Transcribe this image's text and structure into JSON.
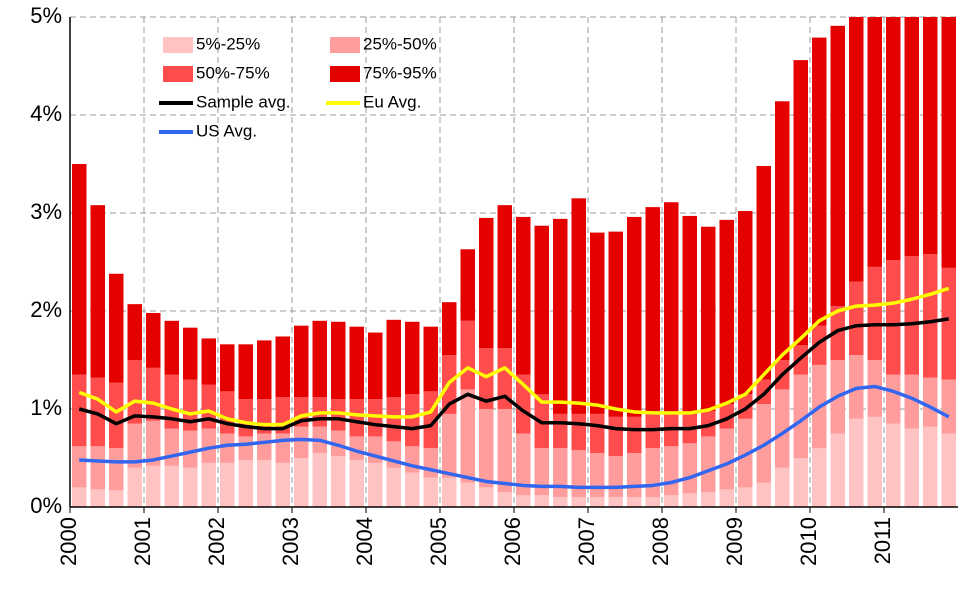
{
  "chart_data": {
    "type": "combo",
    "categories": [
      "2000",
      null,
      null,
      null,
      "2001",
      null,
      null,
      null,
      "2002",
      null,
      null,
      null,
      "2003",
      null,
      null,
      null,
      "2004",
      null,
      null,
      null,
      "2005",
      null,
      null,
      null,
      "2006",
      null,
      null,
      null,
      "2007",
      null,
      null,
      null,
      "2008",
      null,
      null,
      null,
      "2009",
      null,
      null,
      null,
      "2010",
      null,
      null,
      null,
      "2011",
      null,
      null,
      null
    ],
    "ylim": [
      0,
      5
    ],
    "yticks": [
      {
        "value": 0,
        "label": "0%"
      },
      {
        "value": 1,
        "label": "1%"
      },
      {
        "value": 2,
        "label": "2%"
      },
      {
        "value": 3,
        "label": "3%"
      },
      {
        "value": 4,
        "label": "4%"
      },
      {
        "value": 5,
        "label": "5%"
      }
    ],
    "grid": true,
    "legend": "top-left",
    "series": [
      {
        "name": "5%-25%",
        "type": "bar",
        "color": "#ffc3c3",
        "values": [
          0.2,
          0.18,
          0.17,
          0.4,
          0.42,
          0.42,
          0.4,
          0.45,
          0.45,
          0.48,
          0.48,
          0.45,
          0.5,
          0.55,
          0.52,
          0.48,
          0.45,
          0.4,
          0.35,
          0.3,
          0.3,
          0.25,
          0.2,
          0.15,
          0.12,
          0.12,
          0.1,
          0.1,
          0.1,
          0.1,
          0.1,
          0.1,
          0.12,
          0.14,
          0.15,
          0.18,
          0.2,
          0.25,
          0.4,
          0.5,
          0.6,
          0.75,
          0.9,
          0.92,
          0.85,
          0.8,
          0.82,
          0.75
        ]
      },
      {
        "name": "25%-50%",
        "type": "bar",
        "color": "#ff9c9c",
        "values": [
          0.42,
          0.44,
          0.43,
          0.45,
          0.46,
          0.38,
          0.38,
          0.35,
          0.3,
          0.24,
          0.27,
          0.3,
          0.32,
          0.27,
          0.26,
          0.24,
          0.27,
          0.27,
          0.27,
          0.3,
          0.65,
          0.95,
          0.8,
          0.85,
          0.63,
          0.48,
          0.5,
          0.48,
          0.45,
          0.42,
          0.45,
          0.5,
          0.5,
          0.51,
          0.57,
          0.62,
          0.7,
          0.8,
          0.8,
          0.85,
          0.85,
          0.75,
          0.65,
          0.58,
          0.5,
          0.55,
          0.5,
          0.55
        ]
      },
      {
        "name": "50%-75%",
        "type": "bar",
        "color": "#ff4c4c",
        "values": [
          0.73,
          0.7,
          0.67,
          0.65,
          0.54,
          0.55,
          0.52,
          0.45,
          0.43,
          0.38,
          0.35,
          0.37,
          0.3,
          0.3,
          0.32,
          0.38,
          0.38,
          0.45,
          0.53,
          0.58,
          0.6,
          0.7,
          0.62,
          0.62,
          0.6,
          0.55,
          0.35,
          0.37,
          0.4,
          0.4,
          0.37,
          0.35,
          0.33,
          0.3,
          0.26,
          0.25,
          0.25,
          0.25,
          0.3,
          0.3,
          0.4,
          0.55,
          0.75,
          0.95,
          1.17,
          1.21,
          1.26,
          1.14
        ]
      },
      {
        "name": "75%-95%",
        "type": "bar",
        "color": "#e50000",
        "values": [
          2.15,
          1.76,
          1.11,
          0.57,
          0.56,
          0.55,
          0.53,
          0.47,
          0.48,
          0.56,
          0.6,
          0.62,
          0.73,
          0.78,
          0.79,
          0.74,
          0.68,
          0.79,
          0.74,
          0.66,
          0.54,
          0.73,
          1.33,
          1.46,
          1.61,
          1.72,
          1.99,
          2.2,
          1.85,
          1.89,
          2.04,
          2.11,
          2.16,
          2.02,
          1.88,
          1.88,
          1.87,
          2.18,
          2.64,
          2.91,
          2.94,
          2.86,
          2.7,
          2.55,
          2.48,
          2.44,
          2.42,
          2.56
        ]
      },
      {
        "name": "Sample avg.",
        "type": "line",
        "color": "#000000",
        "values": [
          1.0,
          0.95,
          0.85,
          0.93,
          0.92,
          0.9,
          0.87,
          0.9,
          0.85,
          0.82,
          0.8,
          0.8,
          0.88,
          0.9,
          0.9,
          0.87,
          0.84,
          0.82,
          0.8,
          0.83,
          1.05,
          1.15,
          1.08,
          1.13,
          0.98,
          0.86,
          0.86,
          0.85,
          0.83,
          0.8,
          0.79,
          0.79,
          0.8,
          0.8,
          0.83,
          0.9,
          1.0,
          1.15,
          1.35,
          1.52,
          1.68,
          1.8,
          1.85,
          1.86,
          1.86,
          1.87,
          1.89,
          1.92
        ]
      },
      {
        "name": "Eu Avg.",
        "type": "line",
        "color": "#ffff00",
        "values": [
          1.17,
          1.1,
          0.97,
          1.08,
          1.06,
          1.0,
          0.95,
          0.98,
          0.9,
          0.86,
          0.84,
          0.84,
          0.93,
          0.96,
          0.96,
          0.94,
          0.93,
          0.92,
          0.92,
          0.97,
          1.27,
          1.42,
          1.33,
          1.42,
          1.25,
          1.07,
          1.07,
          1.06,
          1.04,
          1.0,
          0.97,
          0.96,
          0.96,
          0.96,
          0.99,
          1.06,
          1.15,
          1.35,
          1.55,
          1.72,
          1.9,
          2.0,
          2.05,
          2.06,
          2.08,
          2.12,
          2.17,
          2.23
        ]
      },
      {
        "name": "US Avg.",
        "type": "line",
        "color": "#3366ee",
        "values": [
          0.48,
          0.47,
          0.46,
          0.46,
          0.48,
          0.52,
          0.56,
          0.6,
          0.63,
          0.64,
          0.66,
          0.68,
          0.69,
          0.68,
          0.63,
          0.57,
          0.52,
          0.47,
          0.42,
          0.38,
          0.34,
          0.3,
          0.26,
          0.24,
          0.22,
          0.21,
          0.21,
          0.2,
          0.2,
          0.2,
          0.21,
          0.22,
          0.25,
          0.3,
          0.37,
          0.44,
          0.53,
          0.63,
          0.75,
          0.88,
          1.02,
          1.13,
          1.21,
          1.23,
          1.18,
          1.11,
          1.02,
          0.92
        ]
      }
    ]
  }
}
